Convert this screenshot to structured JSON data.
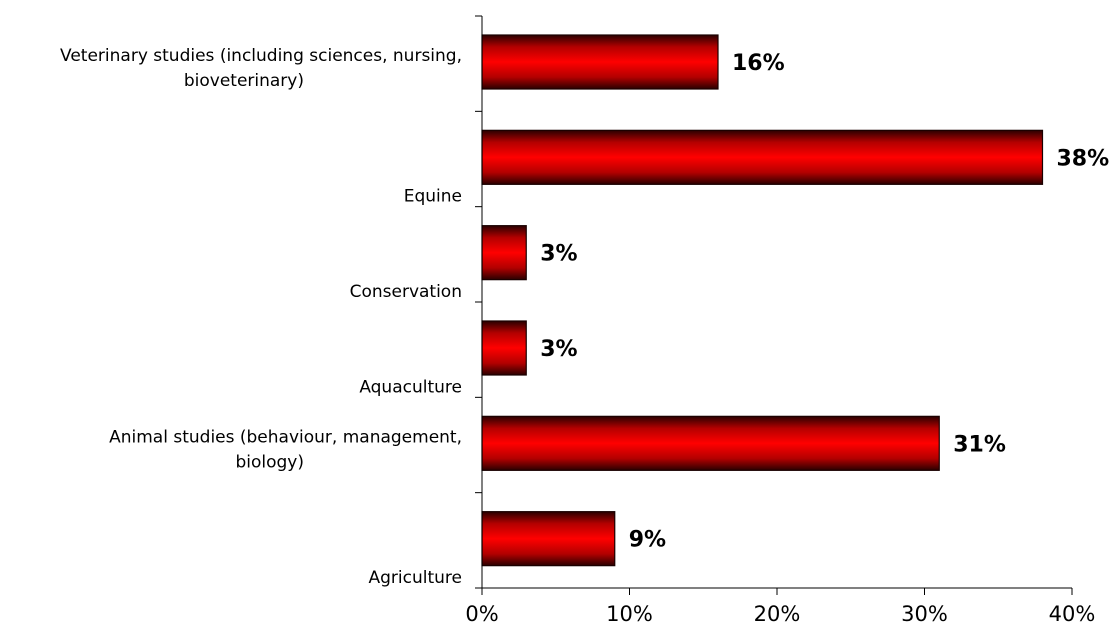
{
  "chart_data": {
    "type": "bar",
    "orientation": "horizontal",
    "categories": [
      "Veterinary studies (including sciences, nursing, bioveterinary)",
      "Equine",
      "Conservation",
      "Aquaculture",
      "Animal studies (behaviour, management, biology)",
      "Agriculture"
    ],
    "category_lines": [
      [
        "Veterinary studies (including sciences, nursing,",
        "bioveterinary)"
      ],
      [
        "Equine"
      ],
      [
        "Conservation"
      ],
      [
        "Aquaculture"
      ],
      [
        "Animal studies (behaviour, management,",
        "biology)"
      ],
      [
        "Agriculture"
      ]
    ],
    "values": [
      16,
      38,
      3,
      3,
      31,
      9
    ],
    "data_labels": [
      "16%",
      "38%",
      "3%",
      "3%",
      "31%",
      "9%"
    ],
    "xlim": [
      0,
      40
    ],
    "xticks": [
      0,
      10,
      20,
      30,
      40
    ],
    "xtick_labels": [
      "0%",
      "10%",
      "20%",
      "30%",
      "40%"
    ],
    "title": "",
    "xlabel": "",
    "ylabel": "",
    "grid": false,
    "legend": "none",
    "bar_color": "#ff0000",
    "bar_shade_color": "#3a0000"
  }
}
